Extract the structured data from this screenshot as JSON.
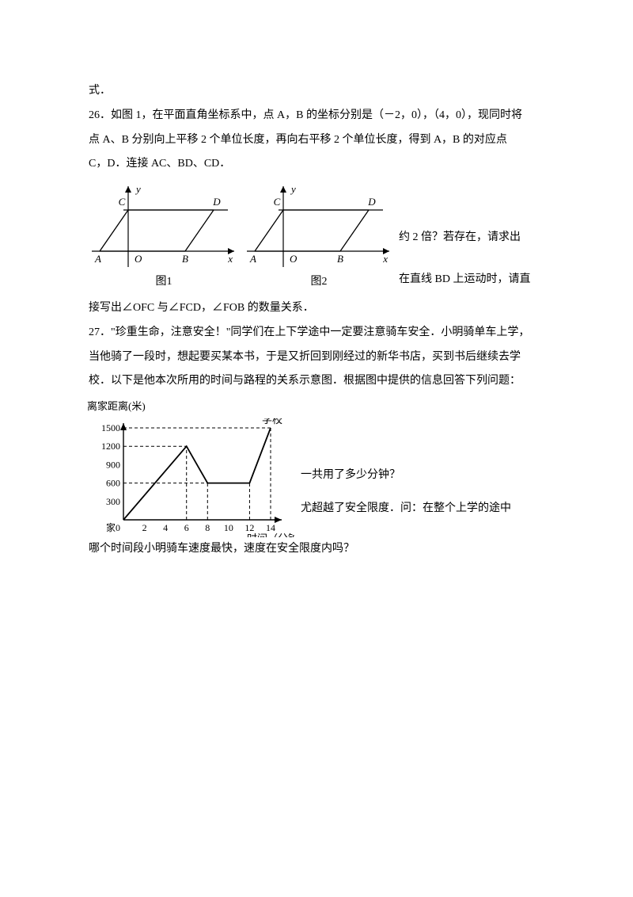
{
  "p0": "式．",
  "p1_a": "26．如图 1，在平面直角坐标系中，点 A，B 的坐标分别是（－2，0），（4，0），现同时将",
  "p1_b": "点 A、B 分别向上平移 2 个单位长度，再向右平移 2 个单位长度，得到 A，B 的对应点",
  "p1_c": "C，D．连接 AC、BD、CD．",
  "fig1_right_a": "约 2 倍？若存在，请求出",
  "fig1_right_b": "在直线 BD 上运动时，请直",
  "p1_d": "接写出∠OFC 与∠FCD，∠FOB 的数量关系．",
  "p2_a": "27．\"珍重生命，注意安全！\"同学们在上下学途中一定要注意骑车安全．小明骑单车上学，",
  "p2_b": "当他骑了一段时，想起要买某本书，于是又折回到刚经过的新华书店，买到书后继续去学",
  "p2_c": "校．以下是他本次所用的时间与路程的关系示意图．根据图中提供的信息回答下列问题：",
  "chart_side_a": "一共用了多少分钟？",
  "chart_side_b": "尤超越了安全限度．问：在整个上学的途中",
  "p2_d": "哪个时间段小明骑车速度最快，速度在安全限度内吗？",
  "fig": {
    "axis_color": "#000000",
    "line_color": "#000000",
    "label_y": "y",
    "label_x": "x",
    "pt_A": "A",
    "pt_B": "B",
    "pt_C": "C",
    "pt_D": "D",
    "pt_O": "O",
    "cap1": "图1",
    "cap2": "图2"
  },
  "chart": {
    "ylabel": "离家距离(米)",
    "xlabel": "时间（分钟）",
    "school": "学校",
    "home": "家",
    "y_ticks": [
      300,
      600,
      900,
      1200,
      1500
    ],
    "x_ticks": [
      2,
      4,
      6,
      8,
      10,
      12,
      14
    ],
    "points": [
      {
        "x": 0,
        "y": 0
      },
      {
        "x": 6,
        "y": 1200
      },
      {
        "x": 8,
        "y": 600
      },
      {
        "x": 12,
        "y": 600
      },
      {
        "x": 14,
        "y": 1500
      }
    ],
    "grid_color": "#000000",
    "line_color": "#000000",
    "bg": "#ffffff",
    "fontsize": 12
  }
}
